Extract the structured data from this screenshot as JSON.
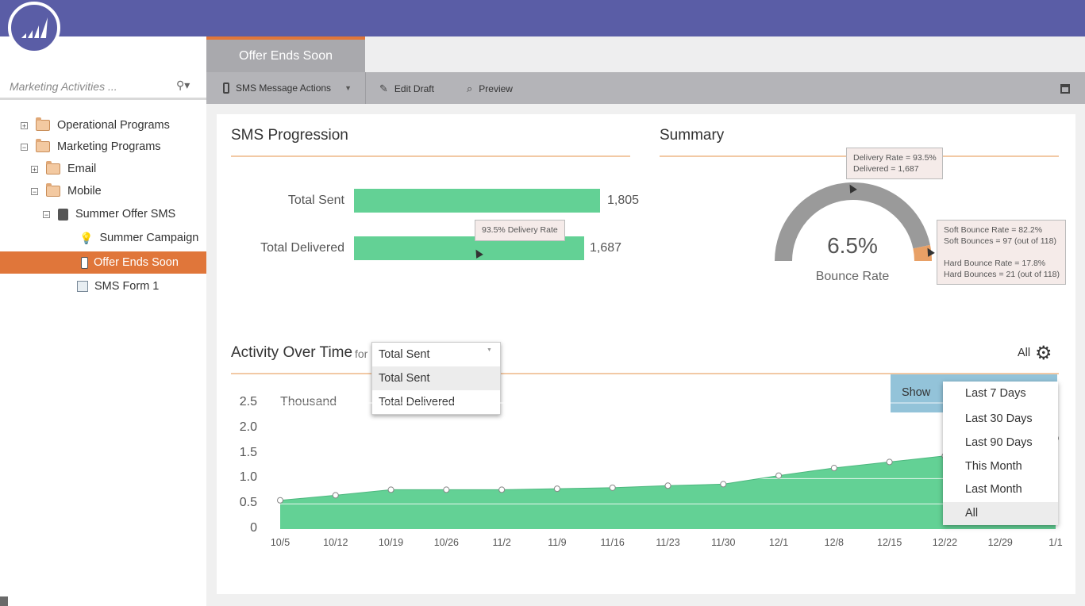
{
  "colors": {
    "topbar": "#5a5da6",
    "accent_orange": "#e0763a",
    "bar_green": "#63d195",
    "gauge_gray": "#9a9a9a",
    "gauge_orange": "#e8a066",
    "show_panel_blue": "#93c3d9"
  },
  "sidebar": {
    "search_placeholder": "Marketing Activities ...",
    "items": [
      {
        "label": "Operational Programs",
        "icon": "folder-icon",
        "toggle": "+"
      },
      {
        "label": "Marketing Programs",
        "icon": "folder-icon",
        "toggle": "−"
      },
      {
        "label": "Email",
        "icon": "folder-icon",
        "toggle": "+"
      },
      {
        "label": "Mobile",
        "icon": "folder-icon",
        "toggle": "−"
      },
      {
        "label": "Summer Offer SMS",
        "icon": "sms-program-icon",
        "toggle": "−"
      },
      {
        "label": "Summer Campaign",
        "icon": "lightbulb-icon"
      },
      {
        "label": "Offer Ends Soon",
        "icon": "sms-message-icon",
        "selected": true
      },
      {
        "label": "SMS Form 1",
        "icon": "form-icon"
      }
    ]
  },
  "tab": {
    "label": "Offer Ends Soon"
  },
  "toolbar": {
    "actions_label": "SMS Message Actions",
    "edit_label": "Edit Draft",
    "preview_label": "Preview"
  },
  "progression": {
    "title": "SMS Progression",
    "sent_label": "Total Sent",
    "sent_value": "1,805",
    "delivered_label": "Total Delivered",
    "delivered_value": "1,687",
    "tooltip": "93.5% Delivery Rate"
  },
  "summary": {
    "title": "Summary",
    "bounce_pct": "6.5%",
    "bounce_label": "Bounce Rate",
    "delivery_rate": 0.935,
    "tooltip_delivery_line1": "Delivery Rate = 93.5%",
    "tooltip_delivery_line2": "Delivered = 1,687",
    "tooltip_bounce_line1": "Soft Bounce Rate = 82.2%",
    "tooltip_bounce_line2": "Soft Bounces = 97 (out of 118)",
    "tooltip_bounce_line3": "Hard Bounce Rate = 17.8%",
    "tooltip_bounce_line4": "Hard Bounces = 21 (out of 118)"
  },
  "activity": {
    "title": "Activity Over Time",
    "for_label": "for",
    "selected": "Total Sent",
    "options": [
      "Total Sent",
      "Total Delivered"
    ],
    "period_label": "All",
    "show_label": "Show",
    "periods": [
      "Last 7 Days",
      "Last 30 Days",
      "Last 90 Days",
      "This Month",
      "Last Month",
      "All"
    ],
    "unit_label": "Thousand"
  },
  "chart_data": {
    "type": "area",
    "ylabel": "Thousand",
    "ylim": [
      0,
      2.5
    ],
    "yticks": [
      "2.5",
      "2.0",
      "1.5",
      "1.0",
      "0.5",
      "0"
    ],
    "x": [
      "10/5",
      "10/12",
      "10/19",
      "10/26",
      "11/2",
      "11/9",
      "11/16",
      "11/23",
      "11/30",
      "12/1",
      "12/8",
      "12/15",
      "12/22",
      "12/29",
      "1/1"
    ],
    "series": [
      {
        "values": [
          0.57,
          0.67,
          0.78,
          0.78,
          0.78,
          0.8,
          0.82,
          0.86,
          0.89,
          1.06,
          1.21,
          1.33,
          1.45,
          1.62,
          1.8
        ]
      }
    ],
    "grid": true
  }
}
